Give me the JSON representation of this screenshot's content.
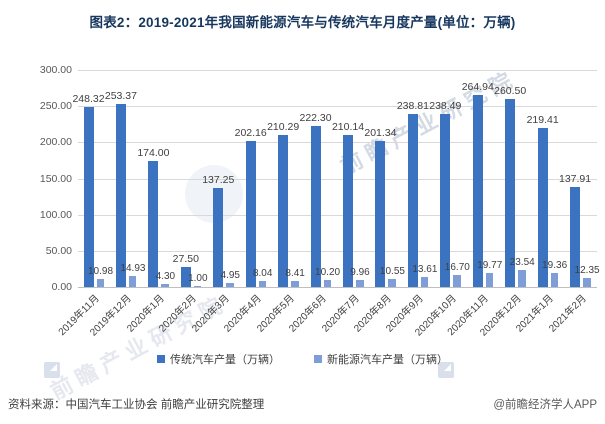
{
  "page": {
    "title": "图表2：2019-2021年我国新能源汽车与传统汽车月度产量(单位：万辆)",
    "source_note": "资料来源：中国汽车工业协会 前瞻产业研究院整理",
    "credit": "@前瞻经济学人APP",
    "watermark": "前瞻产业研究院"
  },
  "colors": {
    "title": "#17375E",
    "traditional": "#3B73C0",
    "new_energy": "#7F9DD6",
    "gridline": "#D9D9D9",
    "axis_text": "#595959",
    "label_text": "#404040"
  },
  "chart_data": {
    "type": "bar",
    "title": "图表2：2019-2021年我国新能源汽车与传统汽车月度产量(单位：万辆)",
    "unit": "万辆",
    "categories": [
      "2019年11月",
      "2019年12月",
      "2020年1月",
      "2020年2月",
      "2020年3月",
      "2020年4月",
      "2020年5月",
      "2020年6月",
      "2020年7月",
      "2020年8月",
      "2020年9月",
      "2020年10月",
      "2020年11月",
      "2020年12月",
      "2021年1月",
      "2021年2月"
    ],
    "series": [
      {
        "name": "传统汽车产量（万辆）",
        "color": "#3B73C0",
        "values": [
          248.32,
          253.37,
          174.0,
          27.5,
          137.25,
          202.16,
          210.29,
          222.3,
          210.14,
          201.34,
          238.81,
          238.49,
          264.94,
          260.5,
          219.41,
          137.91
        ]
      },
      {
        "name": "新能源汽车产量（万辆）",
        "color": "#7F9DD6",
        "values": [
          10.98,
          14.93,
          4.3,
          1.0,
          4.95,
          8.04,
          8.41,
          10.2,
          9.96,
          10.55,
          13.61,
          16.7,
          19.77,
          23.54,
          19.36,
          12.35
        ]
      }
    ],
    "ylim": [
      0,
      300
    ],
    "ytick_step": 50,
    "ytick_labels": [
      "0.00",
      "50.00",
      "100.00",
      "150.00",
      "200.00",
      "250.00",
      "300.00"
    ],
    "grid": true,
    "data_labels": true,
    "value_label_decimals": 2,
    "legend_position": "bottom"
  }
}
